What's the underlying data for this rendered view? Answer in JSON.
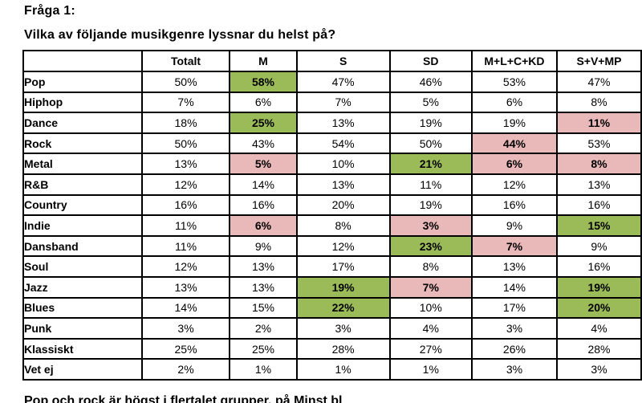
{
  "page": {
    "title": "Fråga 1:",
    "subtitle": "Vilka av följande musikgenre lyssnar du helst på?",
    "clipped_footer": "Pop och rock är högst i flertalet grupper, på Minst bl"
  },
  "colors": {
    "highlight_green": "#9bbb59",
    "highlight_pink": "#e9b8b8",
    "border": "#000000",
    "text": "#000000"
  },
  "table": {
    "columns": [
      "",
      "Totalt",
      "M",
      "S",
      "SD",
      "M+L+C+KD",
      "S+V+MP"
    ],
    "rows": [
      {
        "genre": "Pop",
        "values": [
          "50%",
          "58%",
          "47%",
          "46%",
          "53%",
          "47%"
        ],
        "highlights": [
          null,
          "green",
          null,
          null,
          null,
          null
        ]
      },
      {
        "genre": "Hiphop",
        "values": [
          "7%",
          "6%",
          "7%",
          "5%",
          "6%",
          "8%"
        ],
        "highlights": [
          null,
          null,
          null,
          null,
          null,
          null
        ]
      },
      {
        "genre": "Dance",
        "values": [
          "18%",
          "25%",
          "13%",
          "19%",
          "19%",
          "11%"
        ],
        "highlights": [
          null,
          "green",
          null,
          null,
          null,
          "pink"
        ]
      },
      {
        "genre": "Rock",
        "values": [
          "50%",
          "43%",
          "54%",
          "50%",
          "44%",
          "53%"
        ],
        "highlights": [
          null,
          null,
          null,
          null,
          "pink",
          null
        ]
      },
      {
        "genre": "Metal",
        "values": [
          "13%",
          "5%",
          "10%",
          "21%",
          "6%",
          "8%"
        ],
        "highlights": [
          null,
          "pink",
          null,
          "green",
          "pink",
          "pink"
        ]
      },
      {
        "genre": "R&B",
        "values": [
          "12%",
          "14%",
          "13%",
          "11%",
          "12%",
          "13%"
        ],
        "highlights": [
          null,
          null,
          null,
          null,
          null,
          null
        ]
      },
      {
        "genre": "Country",
        "values": [
          "16%",
          "16%",
          "20%",
          "19%",
          "16%",
          "16%"
        ],
        "highlights": [
          null,
          null,
          null,
          null,
          null,
          null
        ]
      },
      {
        "genre": "Indie",
        "values": [
          "11%",
          "6%",
          "8%",
          "3%",
          "9%",
          "15%"
        ],
        "highlights": [
          null,
          "pink",
          null,
          "pink",
          null,
          "green"
        ]
      },
      {
        "genre": "Dansband",
        "values": [
          "11%",
          "9%",
          "12%",
          "23%",
          "7%",
          "9%"
        ],
        "highlights": [
          null,
          null,
          null,
          "green",
          "pink",
          null
        ]
      },
      {
        "genre": "Soul",
        "values": [
          "12%",
          "13%",
          "17%",
          "8%",
          "13%",
          "16%"
        ],
        "highlights": [
          null,
          null,
          null,
          null,
          null,
          null
        ]
      },
      {
        "genre": "Jazz",
        "values": [
          "13%",
          "13%",
          "19%",
          "7%",
          "14%",
          "19%"
        ],
        "highlights": [
          null,
          null,
          "green",
          "pink",
          null,
          "green"
        ]
      },
      {
        "genre": "Blues",
        "values": [
          "14%",
          "15%",
          "22%",
          "10%",
          "17%",
          "20%"
        ],
        "highlights": [
          null,
          null,
          "green",
          null,
          null,
          "green"
        ]
      },
      {
        "genre": "Punk",
        "values": [
          "3%",
          "2%",
          "3%",
          "4%",
          "3%",
          "4%"
        ],
        "highlights": [
          null,
          null,
          null,
          null,
          null,
          null
        ]
      },
      {
        "genre": "Klassiskt",
        "values": [
          "25%",
          "25%",
          "28%",
          "27%",
          "26%",
          "28%"
        ],
        "highlights": [
          null,
          null,
          null,
          null,
          null,
          null
        ]
      },
      {
        "genre": "Vet ej",
        "values": [
          "2%",
          "1%",
          "1%",
          "1%",
          "3%",
          "3%"
        ],
        "highlights": [
          null,
          null,
          null,
          null,
          null,
          null
        ]
      }
    ]
  }
}
